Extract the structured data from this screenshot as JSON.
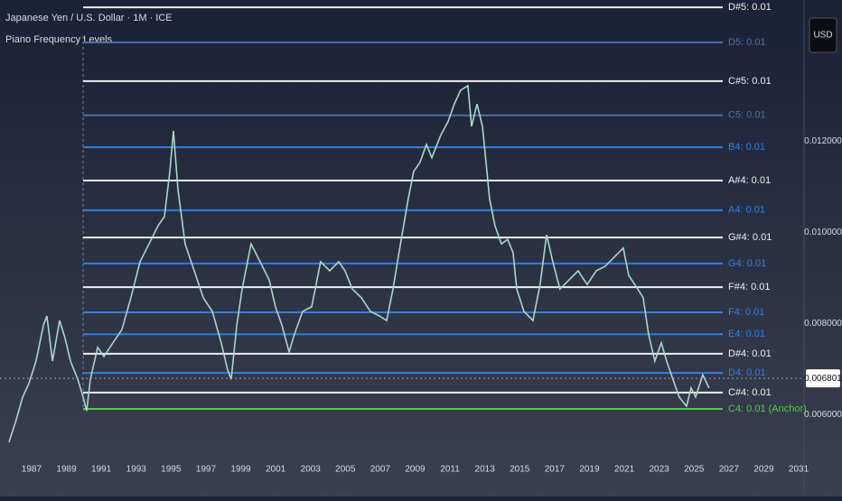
{
  "chart_data": {
    "type": "line",
    "title": "Japanese Yen / U.S. Dollar · 1M · ICE",
    "subtitle": "Piano Frequency Levels",
    "currency": "USD",
    "color": "#a8d8c8",
    "x": [
      1985.71,
      1986.12,
      1986.49,
      1986.85,
      1987.26,
      1987.68,
      1987.88,
      1988.2,
      1988.61,
      1988.92,
      1989.23,
      1989.65,
      1989.96,
      1990.16,
      1990.37,
      1990.79,
      1991.15,
      1991.67,
      1992.18,
      1992.7,
      1993.22,
      1993.74,
      1994.26,
      1994.62,
      1994.93,
      1995.14,
      1995.4,
      1995.81,
      1996.33,
      1996.85,
      1997.37,
      1997.88,
      1998.25,
      1998.45,
      1998.77,
      1999.08,
      1999.59,
      2000.11,
      2000.63,
      2000.99,
      2001.36,
      2001.77,
      2002.08,
      2002.55,
      2003.07,
      2003.58,
      2004.1,
      2004.62,
      2004.98,
      2005.4,
      2005.92,
      2006.43,
      2006.95,
      2007.37,
      2007.73,
      2007.99,
      2008.25,
      2008.61,
      2008.92,
      2009.28,
      2009.65,
      2009.96,
      2010.47,
      2010.89,
      2011.25,
      2011.61,
      2012.03,
      2012.24,
      2012.55,
      2012.86,
      2013.07,
      2013.27,
      2013.58,
      2013.95,
      2014.31,
      2014.62,
      2014.83,
      2015.24,
      2015.76,
      2016.17,
      2016.54,
      2016.9,
      2017.31,
      2017.83,
      2018.35,
      2018.87,
      2019.39,
      2019.91,
      2020.42,
      2020.94,
      2021.25,
      2021.77,
      2022.08,
      2022.39,
      2022.75,
      2023.12,
      2023.43,
      2023.79,
      2024.15,
      2024.57,
      2024.83,
      2025.09,
      2025.5,
      2025.86
    ],
    "values": [
      0.0054,
      0.00589,
      0.00639,
      0.00669,
      0.00718,
      0.00797,
      0.00817,
      0.00718,
      0.00807,
      0.00768,
      0.00718,
      0.00678,
      0.00639,
      0.00609,
      0.00678,
      0.00748,
      0.00728,
      0.00758,
      0.00787,
      0.00857,
      0.00936,
      0.00975,
      0.01015,
      0.01035,
      0.01134,
      0.01223,
      0.01094,
      0.00975,
      0.00916,
      0.00857,
      0.00827,
      0.00758,
      0.00698,
      0.00678,
      0.00797,
      0.00876,
      0.00975,
      0.00936,
      0.00896,
      0.00837,
      0.00797,
      0.00738,
      0.00777,
      0.00827,
      0.00837,
      0.00936,
      0.00916,
      0.00936,
      0.00916,
      0.00876,
      0.00857,
      0.00827,
      0.00817,
      0.00807,
      0.00876,
      0.00936,
      0.00995,
      0.01074,
      0.01134,
      0.01154,
      0.01193,
      0.01164,
      0.01213,
      0.01243,
      0.01282,
      0.01312,
      0.01322,
      0.01233,
      0.01282,
      0.01233,
      0.01154,
      0.01074,
      0.01015,
      0.00975,
      0.00985,
      0.00956,
      0.00876,
      0.00827,
      0.00807,
      0.00886,
      0.00995,
      0.00936,
      0.00876,
      0.00896,
      0.00916,
      0.00886,
      0.00916,
      0.00926,
      0.00946,
      0.00966,
      0.00906,
      0.00876,
      0.00857,
      0.00777,
      0.00718,
      0.00758,
      0.00718,
      0.00678,
      0.00639,
      0.00619,
      0.00659,
      0.00639,
      0.00688,
      0.00659
    ],
    "xlim": [
      1985.19,
      2031.31
    ],
    "xticks": [
      1987,
      1989,
      1991,
      1993,
      1995,
      1997,
      1999,
      2001,
      2003,
      2005,
      2007,
      2009,
      2011,
      2013,
      2015,
      2017,
      2019,
      2021,
      2023,
      2025,
      2027,
      2029,
      2031
    ],
    "ylim": [
      0.0052,
      0.0151
    ],
    "yticks": [
      {
        "value": 0.006,
        "label": "0.006000"
      },
      {
        "value": 0.008,
        "label": "0.008000"
      },
      {
        "value": 0.01,
        "label": "0.010000"
      },
      {
        "value": 0.012,
        "label": "0.012000"
      }
    ],
    "last_price": 0.006801,
    "levels": [
      {
        "label": "D#5: 0.01",
        "value": 0.01494,
        "color": "#f0f0f0"
      },
      {
        "label": "D5: 0.01",
        "value": 0.01417,
        "color": "#4a6fa5"
      },
      {
        "label": "C#5: 0.01",
        "value": 0.01332,
        "color": "#f0f0f0"
      },
      {
        "label": "C5: 0.01",
        "value": 0.01257,
        "color": "#4a6fa5"
      },
      {
        "label": "B4: 0.01",
        "value": 0.01187,
        "color": "#2f7fe0"
      },
      {
        "label": "A#4: 0.01",
        "value": 0.01114,
        "color": "#f0f0f0"
      },
      {
        "label": "A4: 0.01",
        "value": 0.01049,
        "color": "#2f7fe0"
      },
      {
        "label": "G#4: 0.01",
        "value": 0.00989,
        "color": "#f0f0f0"
      },
      {
        "label": "G4: 0.01",
        "value": 0.00932,
        "color": "#2f7fe0"
      },
      {
        "label": "F#4: 0.01",
        "value": 0.0088,
        "color": "#f0f0f0"
      },
      {
        "label": "F4: 0.01",
        "value": 0.00825,
        "color": "#2f7fe0"
      },
      {
        "label": "E4: 0.01",
        "value": 0.00777,
        "color": "#2f7fe0"
      },
      {
        "label": "D#4: 0.01",
        "value": 0.00734,
        "color": "#f0f0f0"
      },
      {
        "label": "D4: 0.01",
        "value": 0.00692,
        "color": "#2f7fe0"
      },
      {
        "label": "C#4: 0.01",
        "value": 0.00649,
        "color": "#f0f0f0"
      },
      {
        "label": "C4: 0.01 (Anchor)",
        "value": 0.00613,
        "color": "#4cd43c"
      }
    ]
  }
}
